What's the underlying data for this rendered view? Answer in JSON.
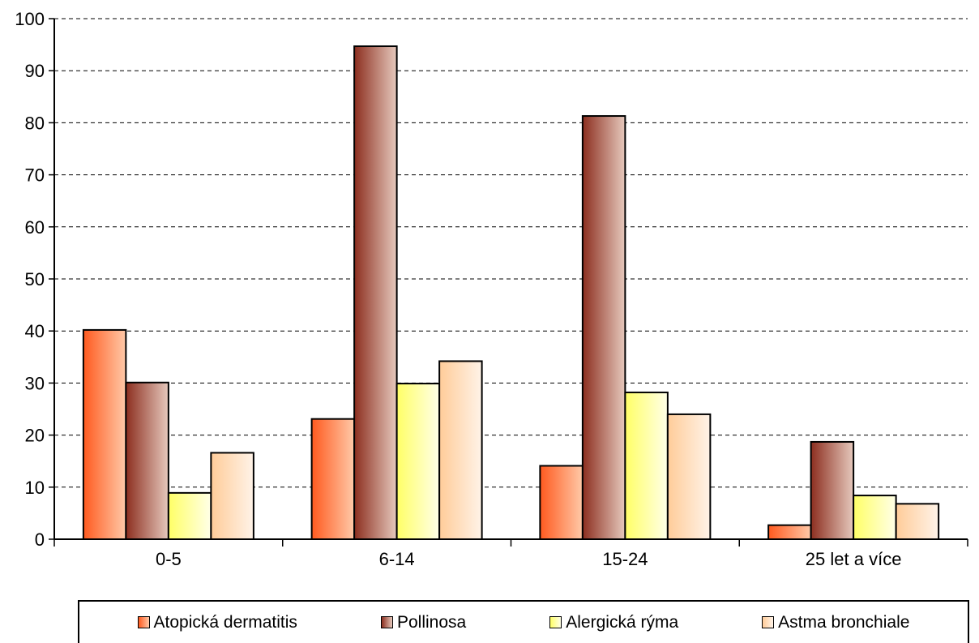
{
  "chart_data": {
    "type": "bar",
    "categories": [
      "0-5",
      "6-14",
      "15-24",
      "25 let a více"
    ],
    "series": [
      {
        "name": "Atopická dermatitis",
        "values": [
          40.2,
          23.1,
          14.1,
          2.7
        ],
        "color_dark": "#ff5a1f",
        "color_light": "#ffc9a8"
      },
      {
        "name": "Pollinosa",
        "values": [
          30.1,
          94.7,
          81.3,
          18.7
        ],
        "color_dark": "#8c2e1f",
        "color_light": "#e6c9bd"
      },
      {
        "name": "Alergická rýma",
        "values": [
          8.9,
          29.9,
          28.2,
          8.4
        ],
        "color_dark": "#ffff66",
        "color_light": "#ffffe8"
      },
      {
        "name": "Astma bronchiale",
        "values": [
          16.6,
          34.2,
          24.0,
          6.8
        ],
        "color_dark": "#ffcc99",
        "color_light": "#fff3e8"
      }
    ],
    "yticks": [
      0,
      10,
      20,
      30,
      40,
      50,
      60,
      70,
      80,
      90,
      100
    ],
    "ylim": [
      0,
      100
    ],
    "grid": "horizontal dashed",
    "legend_position": "bottom"
  }
}
